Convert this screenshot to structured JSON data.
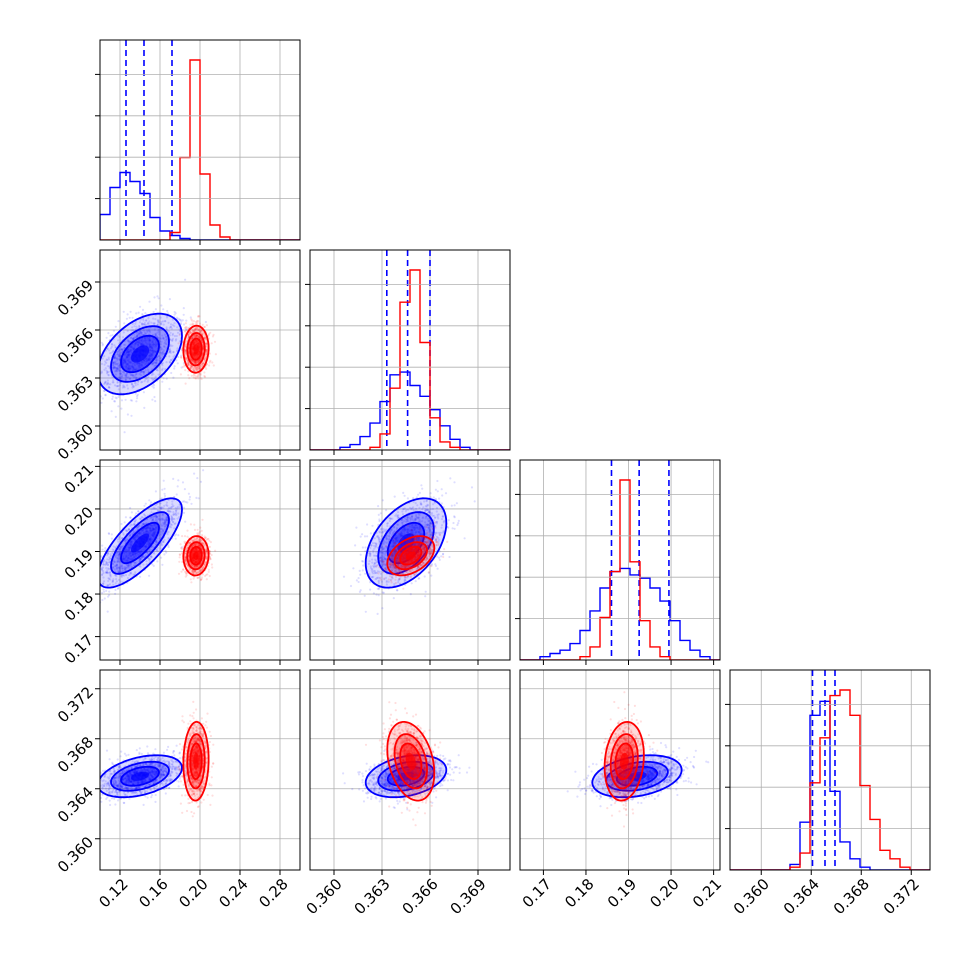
{
  "colors": {
    "blue": "#0000ff",
    "red": "#ff0000",
    "grid": "#b0b0b0",
    "frame": "#000000"
  },
  "chart_data": {
    "type": "corner",
    "grid": true,
    "parameters": [
      {
        "range": [
          0.1,
          0.3
        ],
        "ticks": [
          0.12,
          0.16,
          0.2,
          0.24,
          0.28
        ],
        "tick_labels": [
          "0.12",
          "0.16",
          "0.20",
          "0.24",
          "0.28"
        ]
      },
      {
        "range": [
          0.3585,
          0.371
        ],
        "ticks": [
          0.36,
          0.363,
          0.366,
          0.369
        ],
        "tick_labels": [
          "0.360",
          "0.363",
          "0.366",
          "0.369"
        ]
      },
      {
        "range": [
          0.1645,
          0.2115
        ],
        "ticks": [
          0.17,
          0.18,
          0.19,
          0.2,
          0.21
        ],
        "tick_labels": [
          "0.17",
          "0.18",
          "0.19",
          "0.20",
          "0.21"
        ]
      },
      {
        "range": [
          0.3575,
          0.3735
        ],
        "ticks": [
          0.36,
          0.364,
          0.368,
          0.372
        ],
        "tick_labels": [
          "0.360",
          "0.364",
          "0.368",
          "0.372"
        ]
      }
    ],
    "series": [
      {
        "color": "blue",
        "mean": [
          0.14,
          0.3645,
          0.192,
          0.365
        ],
        "sd": [
          0.02,
          0.0012,
          0.005,
          0.0008
        ],
        "corr": [
          [
            1,
            0.45,
            0.75,
            0.4
          ],
          [
            0.45,
            1,
            0.45,
            0.3
          ],
          [
            0.75,
            0.45,
            1,
            0.3
          ],
          [
            0.4,
            0.3,
            0.3,
            1
          ]
        ],
        "quantiles": [
          [
            0.126,
            0.144,
            0.172
          ],
          [
            0.3633,
            0.3646,
            0.366
          ],
          [
            0.186,
            0.1925,
            0.1995
          ],
          [
            0.3641,
            0.3651,
            0.3659
          ]
        ],
        "histograms": [
          {
            "edges_range": [
              0.1,
              0.3
            ],
            "bins": 20,
            "counts": [
              17,
              35,
              45,
              39,
              31,
              15,
              6,
              3,
              1,
              0,
              0,
              0,
              0,
              0,
              0,
              0,
              0,
              0,
              0,
              0
            ]
          },
          {
            "edges_range": [
              0.3585,
              0.371
            ],
            "bins": 20,
            "counts": [
              0,
              0,
              0,
              1,
              2,
              5,
              10,
              18,
              28,
              29,
              24,
              20,
              15,
              9,
              4,
              1,
              0,
              0,
              0,
              0
            ]
          },
          {
            "edges_range": [
              0.1645,
              0.2115
            ],
            "bins": 20,
            "counts": [
              0,
              0,
              1,
              2,
              3,
              5,
              9,
              15,
              22,
              27,
              28,
              26,
              25,
              22,
              18,
              12,
              6,
              3,
              1,
              0
            ]
          },
          {
            "edges_range": [
              0.3575,
              0.3735
            ],
            "bins": 20,
            "counts": [
              0,
              0,
              0,
              0,
              0,
              0,
              2,
              17,
              55,
              60,
              28,
              10,
              4,
              1,
              0,
              0,
              0,
              0,
              0,
              0
            ]
          }
        ]
      },
      {
        "color": "red",
        "mean": [
          0.196,
          0.3648,
          0.189,
          0.3662
        ],
        "sd": [
          0.006,
          0.0007,
          0.0022,
          0.0015
        ],
        "corr": [
          [
            1,
            0.05,
            0.05,
            0.05
          ],
          [
            0.05,
            1,
            0.4,
            -0.3
          ],
          [
            0.05,
            0.4,
            1,
            0.15
          ],
          [
            0.05,
            -0.3,
            0.15,
            1
          ]
        ],
        "quantiles": [],
        "histograms": [
          {
            "edges_range": [
              0.1,
              0.3
            ],
            "bins": 20,
            "counts": [
              0,
              0,
              0,
              0,
              0,
              0,
              0,
              5,
              55,
              120,
              44,
              10,
              2,
              0,
              0,
              0,
              0,
              0,
              0,
              0
            ]
          },
          {
            "edges_range": [
              0.3585,
              0.371
            ],
            "bins": 20,
            "counts": [
              0,
              0,
              0,
              0,
              0,
              0,
              1,
              6,
              23,
              55,
              67,
              40,
              12,
              3,
              1,
              0,
              0,
              0,
              0,
              0
            ]
          },
          {
            "edges_range": [
              0.1645,
              0.2115
            ],
            "bins": 20,
            "counts": [
              0,
              0,
              0,
              0,
              0,
              0,
              1,
              4,
              13,
              27,
              55,
              30,
              12,
              4,
              1,
              0,
              0,
              0,
              0,
              0
            ]
          },
          {
            "edges_range": [
              0.3575,
              0.3735
            ],
            "bins": 20,
            "counts": [
              0,
              0,
              0,
              0,
              0,
              0,
              1,
              6,
              31,
              47,
              62,
              64,
              55,
              30,
              18,
              7,
              4,
              1,
              0,
              0
            ]
          }
        ]
      }
    ]
  }
}
